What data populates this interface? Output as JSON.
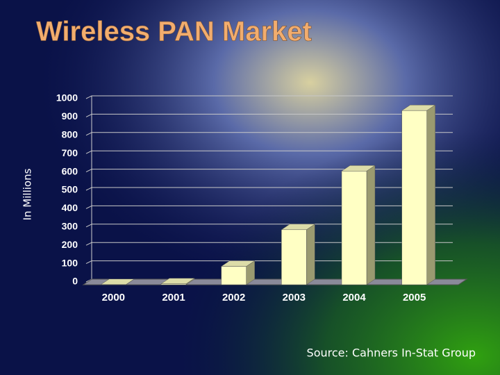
{
  "chart_data": {
    "type": "bar3d",
    "title": "Wireless PAN Market",
    "y_label": "In Millions",
    "categories": [
      "2000",
      "2001",
      "2002",
      "2003",
      "2004",
      "2005"
    ],
    "values": [
      1,
      5,
      100,
      300,
      620,
      950
    ],
    "color": "#ffffc4",
    "ylim": [
      0,
      1000
    ],
    "yticks": [
      0,
      100,
      200,
      300,
      400,
      500,
      600,
      700,
      800,
      900,
      1000
    ],
    "grid": true,
    "source": "Source: Cahners In-Stat Group"
  }
}
